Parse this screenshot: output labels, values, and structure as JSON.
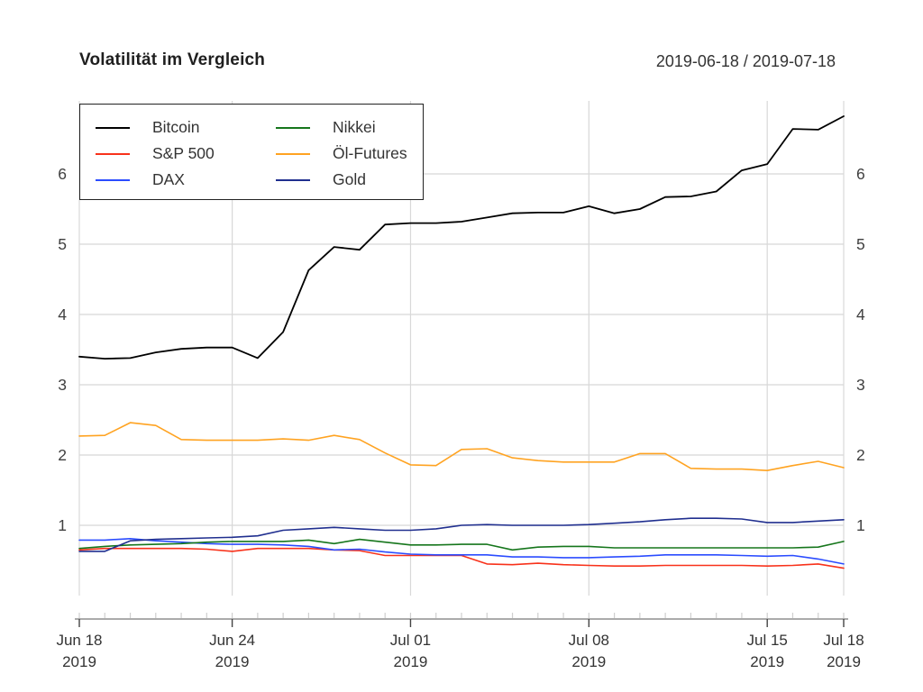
{
  "header": {
    "title": "Volatilität im Vergleich",
    "date_range": "2019-06-18 / 2019-07-18"
  },
  "chart_data": {
    "type": "line",
    "title": "Volatilität im Vergleich",
    "subtitle": "2019-06-18 / 2019-07-18",
    "xlabel": "",
    "ylabel": "",
    "grid": true,
    "legend_position": "top-left",
    "ylim": [
      0.3,
      6.9
    ],
    "y_ticks": [
      1,
      2,
      3,
      4,
      5,
      6
    ],
    "y_ticks_both_sides": true,
    "dates": [
      "2019-06-18",
      "2019-06-19",
      "2019-06-20",
      "2019-06-21",
      "2019-06-22",
      "2019-06-23",
      "2019-06-24",
      "2019-06-25",
      "2019-06-26",
      "2019-06-27",
      "2019-06-28",
      "2019-06-29",
      "2019-06-30",
      "2019-07-01",
      "2019-07-02",
      "2019-07-03",
      "2019-07-04",
      "2019-07-05",
      "2019-07-06",
      "2019-07-07",
      "2019-07-08",
      "2019-07-09",
      "2019-07-10",
      "2019-07-11",
      "2019-07-12",
      "2019-07-13",
      "2019-07-14",
      "2019-07-15",
      "2019-07-16",
      "2019-07-17",
      "2019-07-18"
    ],
    "x_axis_majors": [
      {
        "index": 0,
        "line1": "Jun 18",
        "line2": "2019"
      },
      {
        "index": 6,
        "line1": "Jun 24",
        "line2": "2019"
      },
      {
        "index": 13,
        "line1": "Jul 01",
        "line2": "2019"
      },
      {
        "index": 20,
        "line1": "Jul 08",
        "line2": "2019"
      },
      {
        "index": 27,
        "line1": "Jul 15",
        "line2": "2019"
      },
      {
        "index": 30,
        "line1": "Jul 18",
        "line2": "2019"
      }
    ],
    "series": [
      {
        "name": "Bitcoin",
        "color": "#000000",
        "width": 1.8,
        "values": [
          3.4,
          3.37,
          3.38,
          3.46,
          3.51,
          3.53,
          3.53,
          3.38,
          3.75,
          4.63,
          4.96,
          4.92,
          5.28,
          5.3,
          5.3,
          5.32,
          5.38,
          5.44,
          5.45,
          5.45,
          5.54,
          5.44,
          5.5,
          5.67,
          5.68,
          5.75,
          6.05,
          6.14,
          6.64,
          6.63,
          6.82
        ]
      },
      {
        "name": "S&P 500",
        "color": "#f8321b",
        "width": 1.6,
        "values": [
          0.65,
          0.67,
          0.67,
          0.67,
          0.67,
          0.66,
          0.63,
          0.67,
          0.67,
          0.67,
          0.65,
          0.64,
          0.57,
          0.57,
          0.57,
          0.57,
          0.45,
          0.44,
          0.46,
          0.44,
          0.43,
          0.42,
          0.42,
          0.43,
          0.43,
          0.43,
          0.43,
          0.42,
          0.43,
          0.45,
          0.39
        ]
      },
      {
        "name": "DAX",
        "color": "#2b4cff",
        "width": 1.6,
        "values": [
          0.79,
          0.79,
          0.81,
          0.78,
          0.76,
          0.74,
          0.73,
          0.73,
          0.72,
          0.7,
          0.65,
          0.66,
          0.62,
          0.59,
          0.58,
          0.58,
          0.58,
          0.55,
          0.55,
          0.54,
          0.54,
          0.55,
          0.56,
          0.58,
          0.58,
          0.58,
          0.57,
          0.56,
          0.57,
          0.52,
          0.45
        ]
      },
      {
        "name": "Nikkei",
        "color": "#16761c",
        "width": 1.6,
        "values": [
          0.67,
          0.7,
          0.72,
          0.73,
          0.74,
          0.76,
          0.77,
          0.77,
          0.77,
          0.79,
          0.74,
          0.8,
          0.76,
          0.72,
          0.72,
          0.73,
          0.73,
          0.65,
          0.69,
          0.7,
          0.7,
          0.68,
          0.68,
          0.68,
          0.68,
          0.68,
          0.68,
          0.68,
          0.68,
          0.69,
          0.77
        ]
      },
      {
        "name": "Öl-Futures",
        "color": "#ffa321",
        "width": 1.6,
        "values": [
          2.27,
          2.28,
          2.46,
          2.42,
          2.22,
          2.21,
          2.21,
          2.21,
          2.23,
          2.21,
          2.28,
          2.22,
          2.03,
          1.86,
          1.85,
          2.08,
          2.09,
          1.96,
          1.92,
          1.9,
          1.9,
          1.9,
          2.02,
          2.02,
          1.81,
          1.8,
          1.8,
          1.78,
          1.85,
          1.91,
          1.82
        ]
      },
      {
        "name": "Gold",
        "color": "#202f8f",
        "width": 1.6,
        "values": [
          0.63,
          0.63,
          0.78,
          0.8,
          0.81,
          0.82,
          0.83,
          0.85,
          0.93,
          0.95,
          0.97,
          0.95,
          0.93,
          0.93,
          0.95,
          1.0,
          1.01,
          1.0,
          1.0,
          1.0,
          1.01,
          1.03,
          1.05,
          1.08,
          1.1,
          1.1,
          1.09,
          1.04,
          1.04,
          1.06,
          1.08
        ]
      }
    ],
    "legend_columns": [
      [
        0,
        1,
        2
      ],
      [
        3,
        4,
        5
      ]
    ],
    "colors": {
      "grid": "#d8d8d8",
      "axis_line": "#ababab",
      "minor_tick": "#cfcfcf",
      "major_tick": "#444444",
      "tick_label": "#404040",
      "x_label": "#333333"
    }
  }
}
